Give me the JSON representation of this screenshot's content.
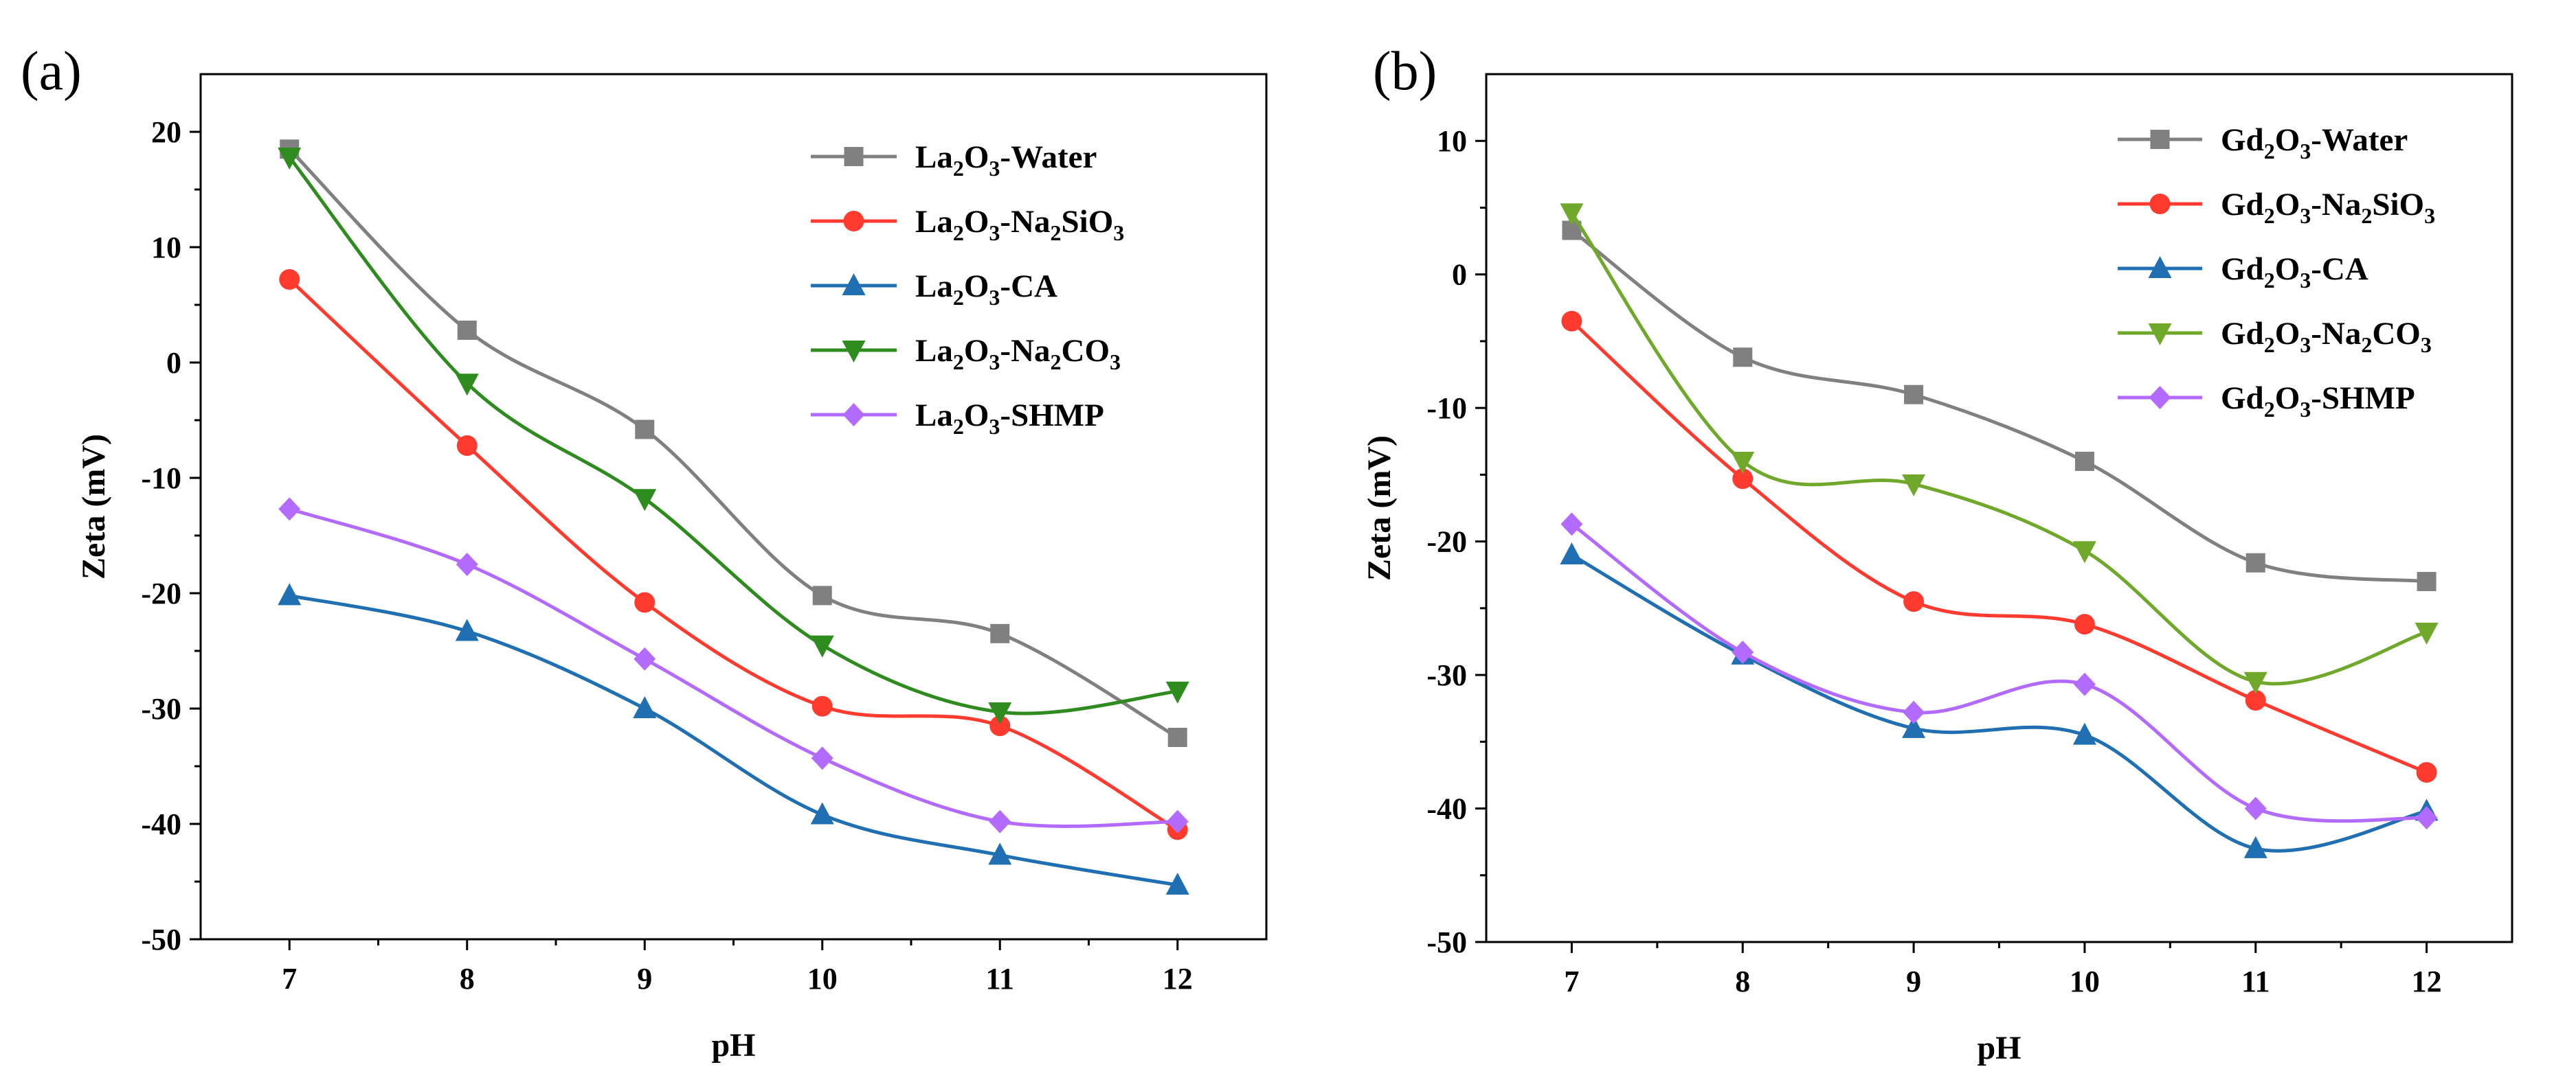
{
  "chart_data": [
    {
      "panel_label": "(a)",
      "type": "line",
      "xlabel": "pH",
      "ylabel": "Zeta (mV)",
      "xlim": [
        6.5,
        12.5
      ],
      "ylim": [
        -50,
        25
      ],
      "x_ticks": [
        7,
        8,
        9,
        10,
        11,
        12
      ],
      "y_ticks": [
        -50,
        -40,
        -30,
        -20,
        -10,
        0,
        10,
        20
      ],
      "categories": [
        7,
        8,
        9,
        10,
        11,
        12
      ],
      "legend_position": "top-right",
      "series": [
        {
          "name": "La2O3-Water",
          "oxide": "La",
          "suffix": "-Water",
          "na_part": "",
          "color": "#808080",
          "marker": "square",
          "values": [
            18.5,
            2.8,
            -5.8,
            -20.2,
            -23.5,
            -32.5
          ]
        },
        {
          "name": "La2O3-Na2SiO3",
          "oxide": "La",
          "suffix": "SiO",
          "na_part": "-Na",
          "color": "#ff3b30",
          "marker": "circle",
          "values": [
            7.2,
            -7.2,
            -20.8,
            -29.8,
            -31.5,
            -40.5
          ]
        },
        {
          "name": "La2O3-CA",
          "oxide": "La",
          "suffix": "-CA",
          "na_part": "",
          "color": "#1f6fb2",
          "marker": "triangle-up",
          "values": [
            -20.2,
            -23.3,
            -30.0,
            -39.2,
            -42.7,
            -45.3
          ]
        },
        {
          "name": "La2O3-Na2CO3",
          "oxide": "La",
          "suffix": "CO",
          "na_part": "-Na",
          "color": "#2e8b1e",
          "marker": "triangle-down",
          "values": [
            17.8,
            -1.8,
            -11.8,
            -24.5,
            -30.3,
            -28.5
          ]
        },
        {
          "name": "La2O3-SHMP",
          "oxide": "La",
          "suffix": "-SHMP",
          "na_part": "",
          "color": "#b36bff",
          "marker": "diamond",
          "values": [
            -12.7,
            -17.5,
            -25.7,
            -34.3,
            -39.8,
            -39.8
          ]
        }
      ]
    },
    {
      "panel_label": "(b)",
      "type": "line",
      "xlabel": "pH",
      "ylabel": "Zeta (mV)",
      "xlim": [
        6.5,
        12.5
      ],
      "ylim": [
        -50,
        15
      ],
      "x_ticks": [
        7,
        8,
        9,
        10,
        11,
        12
      ],
      "y_ticks": [
        -50,
        -40,
        -30,
        -20,
        -10,
        0,
        10
      ],
      "categories": [
        7,
        8,
        9,
        10,
        11,
        12
      ],
      "legend_position": "top-right",
      "series": [
        {
          "name": "Gd2O3-Water",
          "oxide": "Gd",
          "suffix": "-Water",
          "na_part": "",
          "color": "#808080",
          "marker": "square",
          "values": [
            3.3,
            -6.2,
            -9.0,
            -14.0,
            -21.6,
            -23.0
          ]
        },
        {
          "name": "Gd2O3-Na2SiO3",
          "oxide": "Gd",
          "suffix": "SiO",
          "na_part": "-Na",
          "color": "#ff3b30",
          "marker": "circle",
          "values": [
            -3.5,
            -15.3,
            -24.5,
            -26.2,
            -31.9,
            -37.3
          ]
        },
        {
          "name": "Gd2O3-CA",
          "oxide": "Gd",
          "suffix": "-CA",
          "na_part": "",
          "color": "#1f6fb2",
          "marker": "triangle-up",
          "values": [
            -21.0,
            -28.5,
            -34.0,
            -34.5,
            -43.0,
            -40.2
          ]
        },
        {
          "name": "Gd2O3-Na2CO3",
          "oxide": "Gd",
          "suffix": "CO",
          "na_part": "-Na",
          "color": "#6fa82a",
          "marker": "triangle-down",
          "values": [
            4.6,
            -14.0,
            -15.7,
            -20.7,
            -30.5,
            -26.8
          ]
        },
        {
          "name": "Gd2O3-SHMP",
          "oxide": "Gd",
          "suffix": "-SHMP",
          "na_part": "",
          "color": "#b36bff",
          "marker": "diamond",
          "values": [
            -18.7,
            -28.3,
            -32.8,
            -30.7,
            -40.0,
            -40.7
          ]
        }
      ]
    }
  ]
}
